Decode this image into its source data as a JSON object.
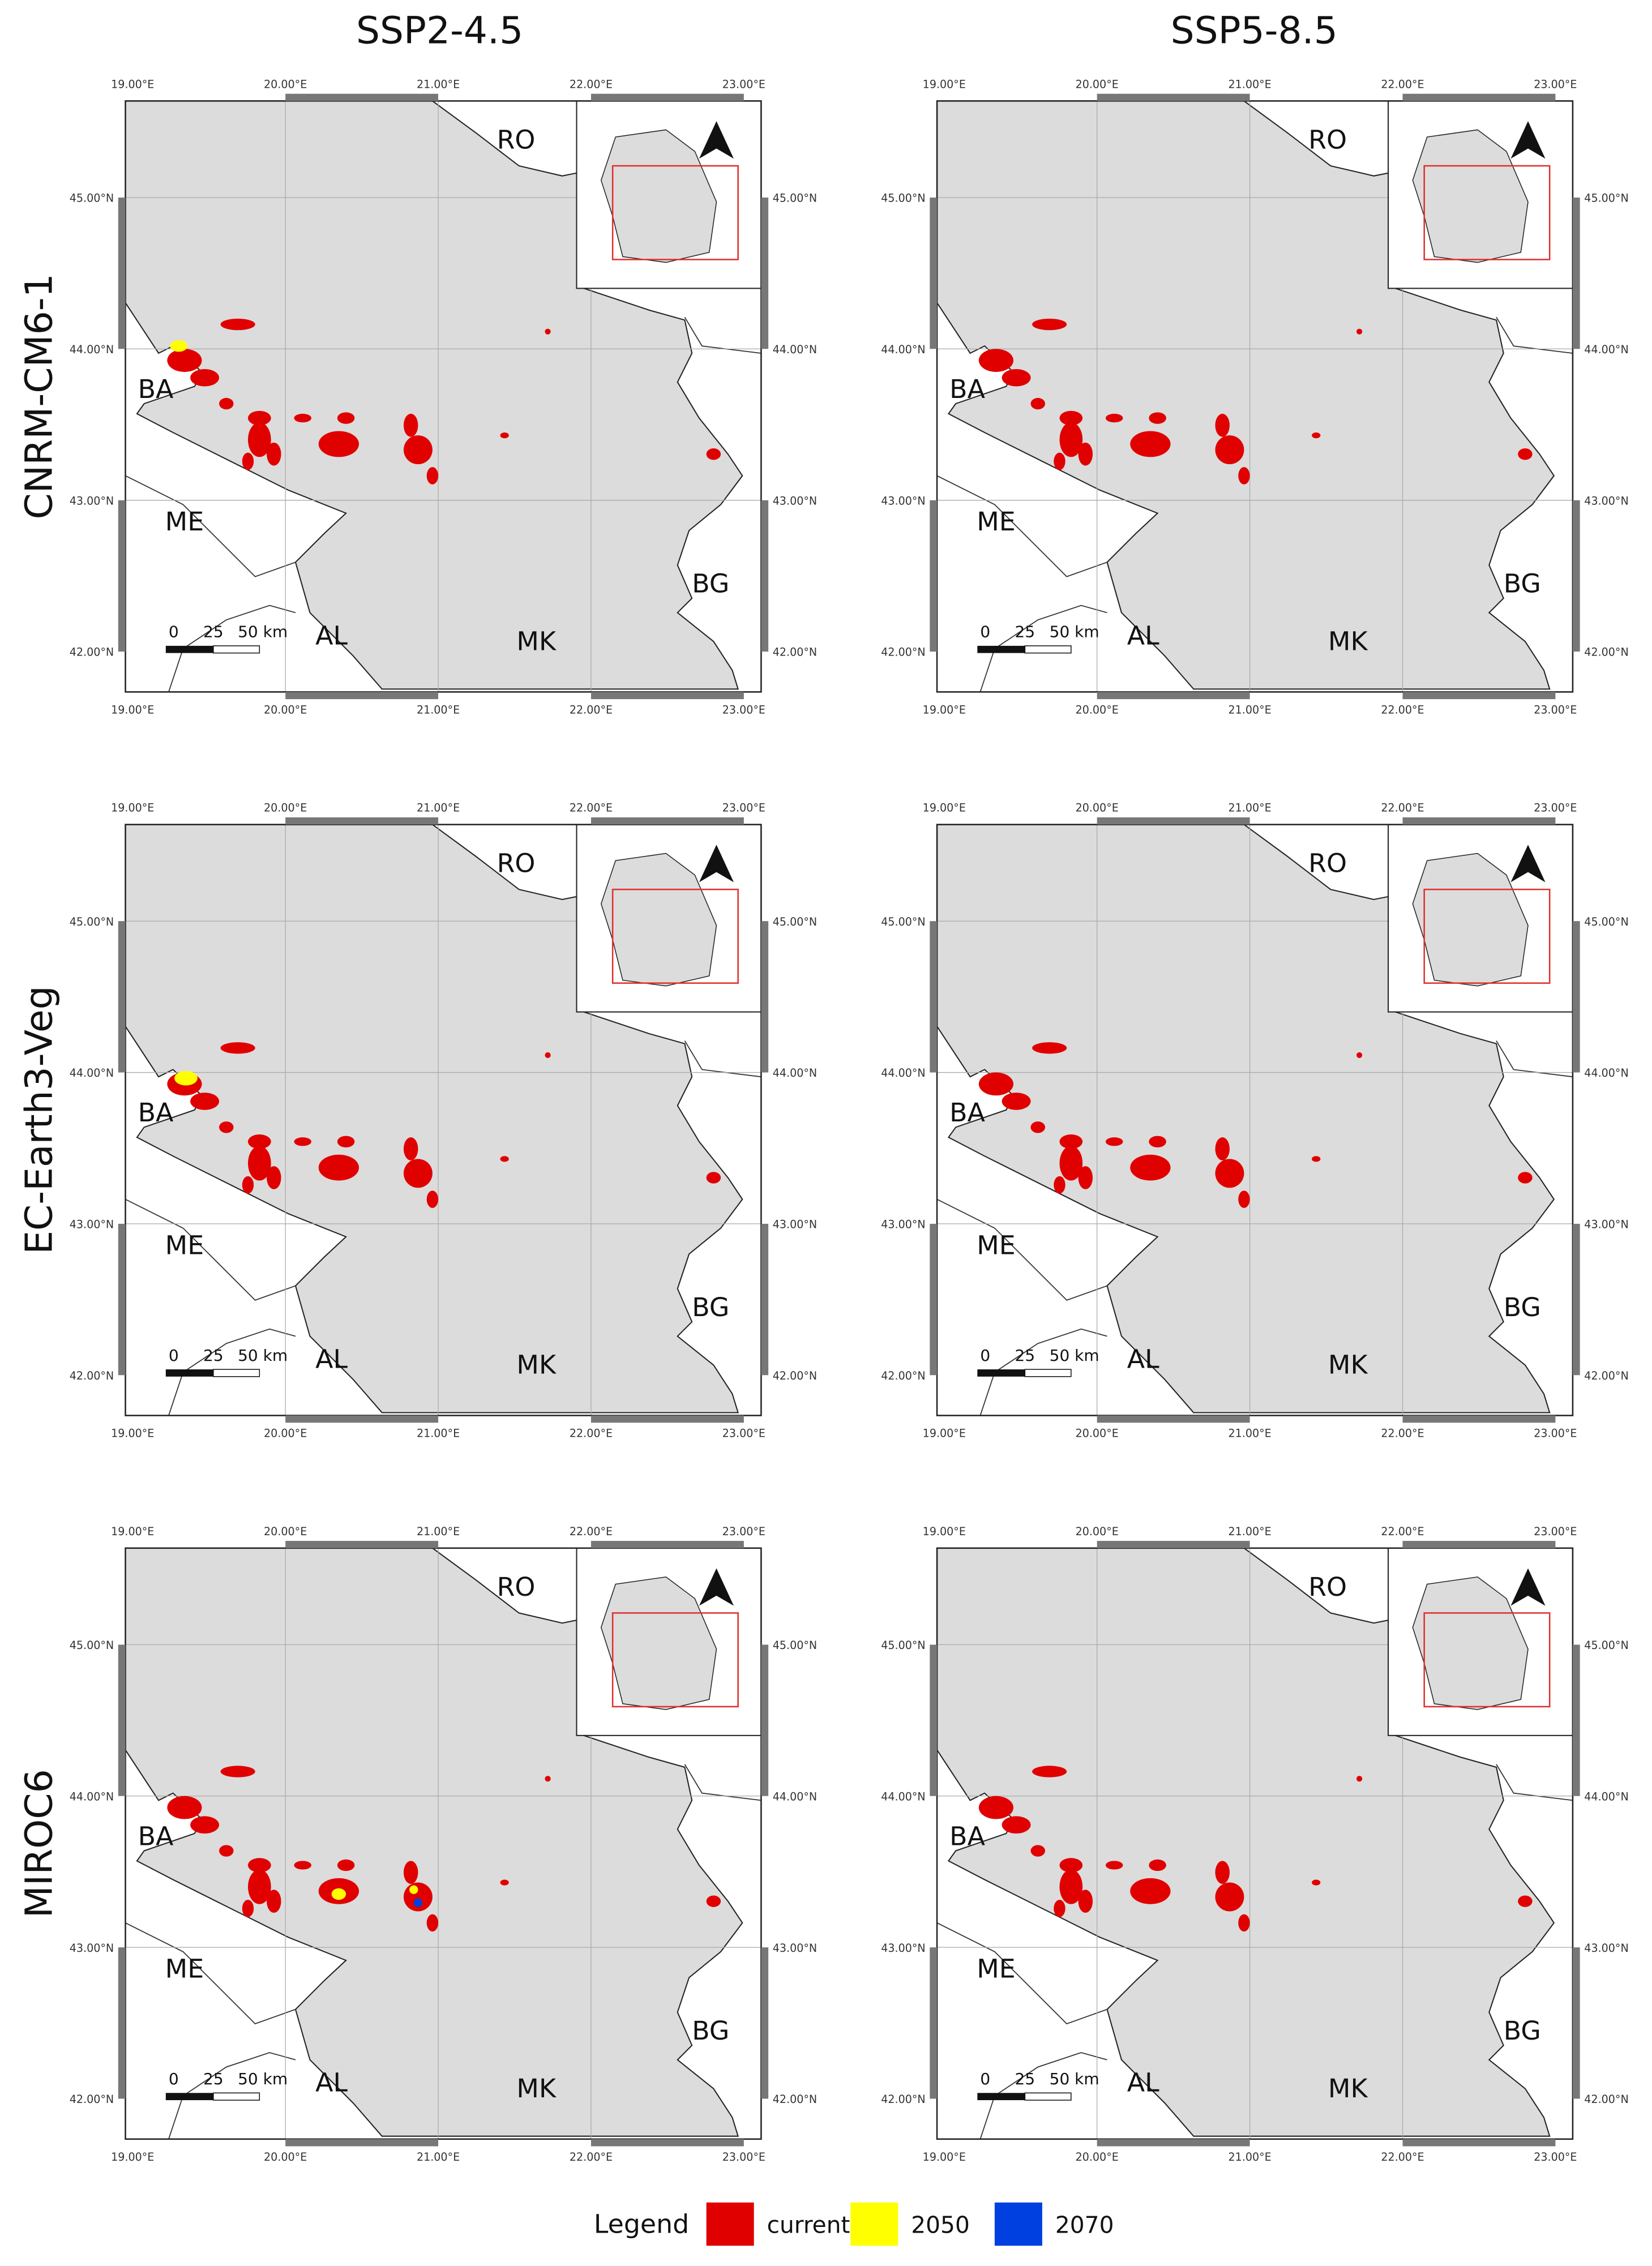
{
  "columns": [
    "SSP2-4.5",
    "SSP5-8.5"
  ],
  "rows": [
    "CNRM-CM6-1",
    "EC-Earth3-Veg",
    "MIROC6"
  ],
  "map": {
    "lon_labels": [
      "19.00°E",
      "20.00°E",
      "21.00°E",
      "22.00°E",
      "23.00°E"
    ],
    "lat_labels": [
      "45.00°N",
      "44.00°N",
      "43.00°N",
      "42.00°N"
    ],
    "countries": [
      "RO",
      "BA",
      "ME",
      "AL",
      "MK",
      "BG"
    ],
    "scale_labels": [
      "0",
      "25",
      "50 km"
    ]
  },
  "legend": {
    "title": "Legend",
    "items": [
      {
        "label": "current",
        "color": "#e00000"
      },
      {
        "label": "2050",
        "color": "#ffff00"
      },
      {
        "label": "2070",
        "color": "#0040e0"
      }
    ]
  }
}
